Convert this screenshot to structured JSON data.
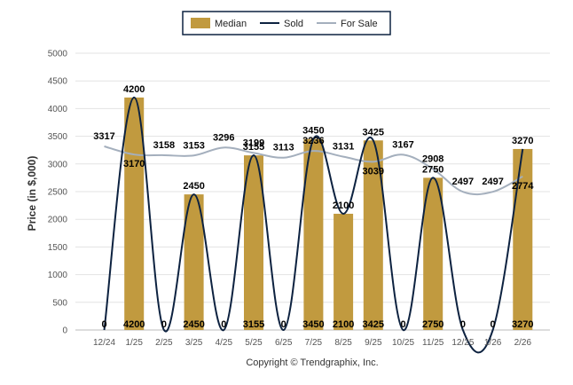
{
  "chart_data": {
    "type": "bar",
    "title": "",
    "xlabel": "",
    "ylabel": "Price (in $,000)",
    "ylim": [
      0,
      5000
    ],
    "yticks": [
      0,
      500,
      1000,
      1500,
      2000,
      2500,
      3000,
      3500,
      4000,
      4500,
      5000
    ],
    "categories": [
      "12/24",
      "1/25",
      "2/25",
      "3/25",
      "4/25",
      "5/25",
      "6/25",
      "7/25",
      "8/25",
      "9/25",
      "10/25",
      "11/25",
      "12/25",
      "1/26",
      "2/26"
    ],
    "series": [
      {
        "name": "Median",
        "type": "bar",
        "color": "#c19a3f",
        "values": [
          0,
          4200,
          0,
          2450,
          0,
          3155,
          0,
          3450,
          2100,
          3425,
          0,
          2750,
          0,
          0,
          3270
        ]
      },
      {
        "name": "Sold",
        "type": "line",
        "color": "#0d2240",
        "values": [
          0,
          4200,
          0,
          2450,
          0,
          3155,
          0,
          3450,
          2100,
          3425,
          0,
          2750,
          0,
          0,
          3270
        ]
      },
      {
        "name": "For Sale",
        "type": "line",
        "color": "#a4afbd",
        "values": [
          3317,
          3170,
          3158,
          3153,
          3296,
          3199,
          3113,
          3236,
          3131,
          3039,
          3167,
          2908,
          2497,
          2497,
          2774
        ]
      }
    ],
    "legend": "top-center",
    "grid": true
  },
  "legend": {
    "median": "Median",
    "sold": "Sold",
    "for_sale": "For Sale"
  },
  "footer": {
    "copyright": "Copyright © Trendgraphix, Inc."
  }
}
